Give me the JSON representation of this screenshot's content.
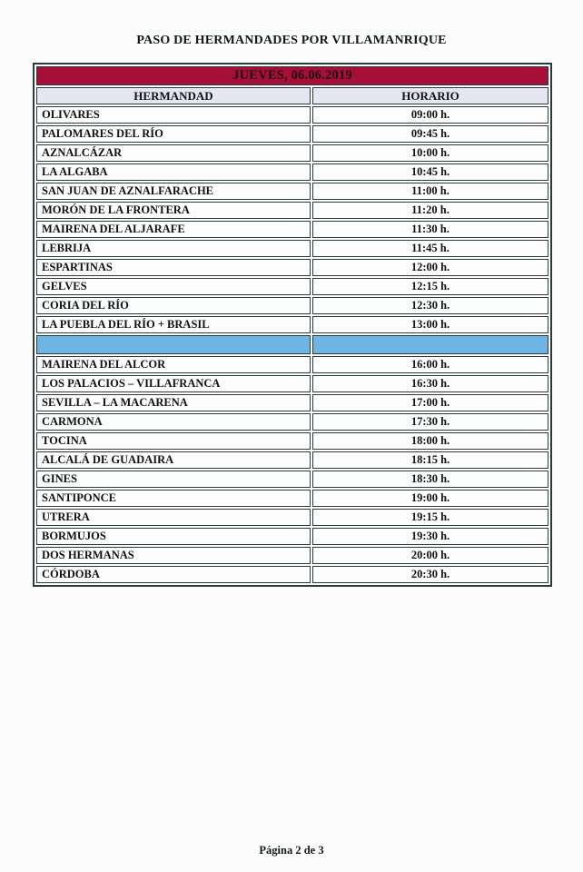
{
  "page": {
    "title": "PASO DE HERMANDADES POR VILLAMANRIQUE",
    "footer": "Página 2 de 3"
  },
  "colors": {
    "banner_bg": "#a60f37",
    "header_bg": "#e6e6f2",
    "separator_bg": "#6eb5e5",
    "border": "#2b3a3a"
  },
  "table": {
    "banner": "JUEVES, 06.06.2019",
    "columns": {
      "hermandad": "HERMANDAD",
      "horario": "HORARIO"
    },
    "morning_rows": [
      {
        "name": "OLIVARES",
        "time": "09:00 h."
      },
      {
        "name": "PALOMARES DEL RÍO",
        "time": "09:45 h."
      },
      {
        "name": "AZNALCÁZAR",
        "time": "10:00 h."
      },
      {
        "name": "LA ALGABA",
        "time": "10:45 h."
      },
      {
        "name": "SAN JUAN DE AZNALFARACHE",
        "time": "11:00 h."
      },
      {
        "name": "MORÓN DE LA FRONTERA",
        "time": "11:20 h."
      },
      {
        "name": "MAIRENA DEL ALJARAFE",
        "time": "11:30 h."
      },
      {
        "name": "LEBRIJA",
        "time": "11:45 h."
      },
      {
        "name": "ESPARTINAS",
        "time": "12:00 h."
      },
      {
        "name": "GELVES",
        "time": "12:15 h."
      },
      {
        "name": "CORIA DEL RÍO",
        "time": "12:30 h."
      },
      {
        "name": "LA PUEBLA DEL RÍO + BRASIL",
        "time": "13:00 h."
      }
    ],
    "afternoon_rows": [
      {
        "name": "MAIRENA DEL ALCOR",
        "time": "16:00 h."
      },
      {
        "name": "LOS PALACIOS – VILLAFRANCA",
        "time": "16:30 h."
      },
      {
        "name": "SEVILLA – LA MACARENA",
        "time": "17:00 h."
      },
      {
        "name": "CARMONA",
        "time": "17:30 h."
      },
      {
        "name": "TOCINA",
        "time": "18:00 h."
      },
      {
        "name": "ALCALÁ DE GUADAIRA",
        "time": "18:15 h."
      },
      {
        "name": "GINES",
        "time": "18:30 h."
      },
      {
        "name": "SANTIPONCE",
        "time": "19:00 h."
      },
      {
        "name": "UTRERA",
        "time": "19:15 h."
      },
      {
        "name": "BORMUJOS",
        "time": "19:30 h."
      },
      {
        "name": "DOS HERMANAS",
        "time": "20:00 h."
      },
      {
        "name": "CÓRDOBA",
        "time": "20:30 h."
      }
    ]
  }
}
